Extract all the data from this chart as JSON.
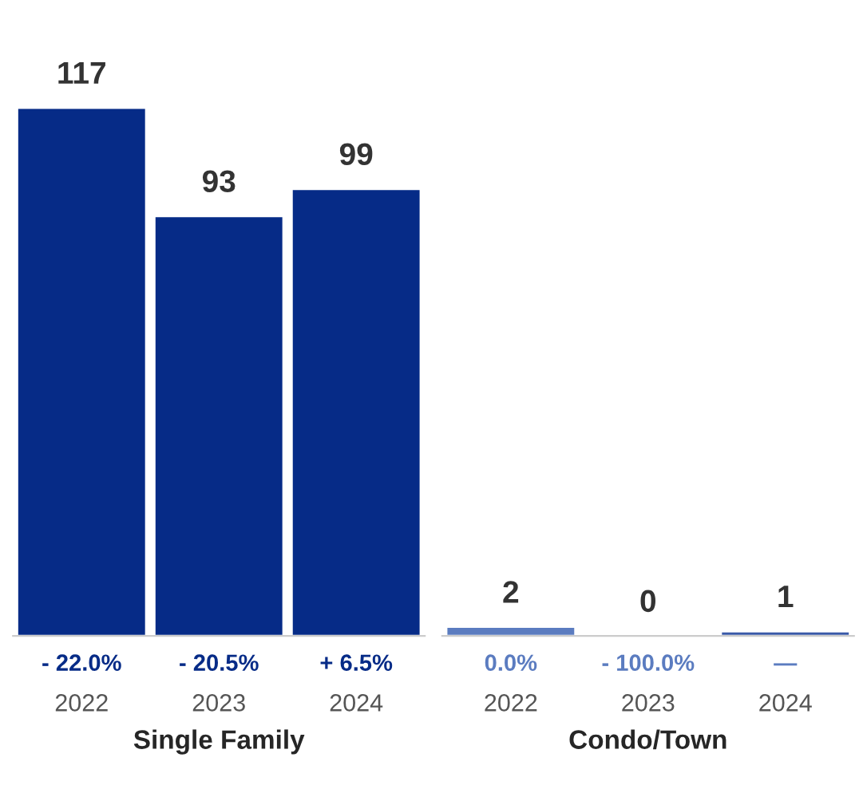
{
  "chart_data": [
    {
      "type": "bar",
      "xlabel": "Single Family",
      "categories": [
        "2022",
        "2023",
        "2024"
      ],
      "values": [
        117,
        93,
        99
      ],
      "colors": [
        "#062b87",
        "#062b87",
        "#062b87"
      ],
      "data_labels": true,
      "grid": false,
      "annotations": [
        "- 22.0%",
        "- 20.5%",
        "+ 6.5%"
      ]
    },
    {
      "type": "bar",
      "xlabel": "Condo/Town",
      "categories": [
        "2022",
        "2023",
        "2024"
      ],
      "values": [
        2,
        0,
        1
      ],
      "colors": [
        "#5b7cc0",
        null,
        "#3a5aa8"
      ],
      "data_labels": true,
      "grid": false,
      "annotations": [
        "0.0%",
        "- 100.0%",
        "—"
      ]
    }
  ]
}
